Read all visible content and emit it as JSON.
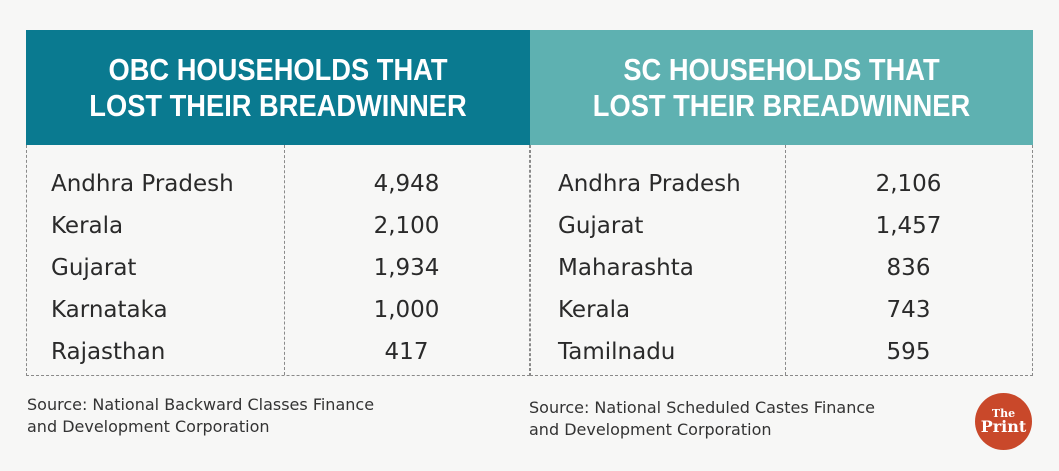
{
  "chart_data": [
    {
      "type": "table",
      "title": "OBC HOUSEHOLDS THAT LOST THEIR BREADWINNER",
      "title_lines": [
        "OBC HOUSEHOLDS THAT",
        "LOST THEIR BREADWINNER"
      ],
      "header_color": "#0a7a90",
      "rows": [
        {
          "state": "Andhra Pradesh",
          "value": "4,948"
        },
        {
          "state": "Kerala",
          "value": "2,100"
        },
        {
          "state": "Gujarat",
          "value": "1,934"
        },
        {
          "state": "Karnataka",
          "value": "1,000"
        },
        {
          "state": "Rajasthan",
          "value": "417"
        }
      ],
      "source_lines": [
        "Source: National Backward Classes Finance",
        "and Development Corporation"
      ]
    },
    {
      "type": "table",
      "title": "SC HOUSEHOLDS THAT LOST THEIR BREADWINNER",
      "title_lines": [
        "SC HOUSEHOLDS THAT",
        "LOST THEIR BREADWINNER"
      ],
      "header_color": "#5eb1b1",
      "rows": [
        {
          "state": "Andhra Pradesh",
          "value": "2,106"
        },
        {
          "state": "Gujarat",
          "value": "1,457"
        },
        {
          "state": "Maharashta",
          "value": "836"
        },
        {
          "state": "Kerala",
          "value": "743"
        },
        {
          "state": "Tamilnadu",
          "value": "595"
        }
      ],
      "source_lines": [
        "Source: National Scheduled Castes Finance",
        "and Development Corporation"
      ]
    }
  ],
  "logo": {
    "line1": "The",
    "line2": "Print",
    "color": "#c9482a"
  }
}
